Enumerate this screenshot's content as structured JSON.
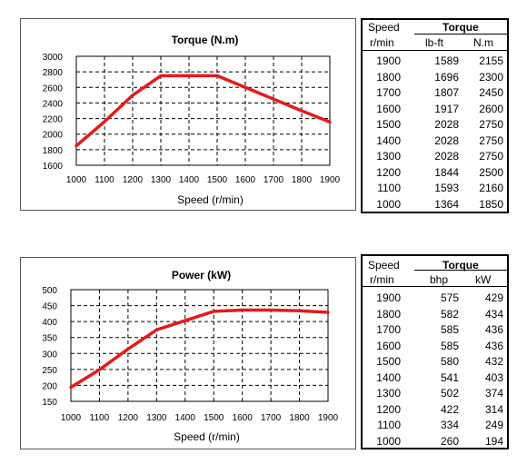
{
  "chart_data": [
    {
      "type": "line",
      "title": "Torque (N.m)",
      "xlabel": "Speed (r/min)",
      "ylabel": "",
      "x": [
        1000,
        1100,
        1200,
        1300,
        1400,
        1500,
        1600,
        1700,
        1800,
        1900
      ],
      "x_ticks": [
        "1000",
        "1100",
        "1200",
        "1300",
        "1400",
        "1500",
        "1600",
        "1700",
        "1800",
        "1900"
      ],
      "y_ticks": [
        "3000",
        "2800",
        "2600",
        "2400",
        "2200",
        "2000",
        "1800",
        "1600"
      ],
      "xlim": [
        1000,
        1900
      ],
      "ylim": [
        1600,
        3000
      ],
      "grid": "dashed",
      "series": [
        {
          "values": [
            1850,
            2160,
            2500,
            2750,
            2750,
            2750,
            2600,
            2450,
            2300,
            2155
          ],
          "color": "#e31b1b"
        }
      ]
    },
    {
      "type": "line",
      "title": "Power (kW)",
      "xlabel": "Speed (r/min)",
      "ylabel": "",
      "x": [
        1000,
        1100,
        1200,
        1300,
        1400,
        1500,
        1600,
        1700,
        1800,
        1900
      ],
      "x_ticks": [
        "1000",
        "1100",
        "1200",
        "1300",
        "1400",
        "1500",
        "1600",
        "1700",
        "1800",
        "1900"
      ],
      "y_ticks": [
        "500",
        "450",
        "400",
        "350",
        "300",
        "250",
        "200",
        "150"
      ],
      "xlim": [
        1000,
        1900
      ],
      "ylim": [
        150,
        500
      ],
      "grid": "dashed",
      "series": [
        {
          "values": [
            194,
            249,
            314,
            374,
            403,
            432,
            436,
            436,
            434,
            429
          ],
          "color": "#e31b1b"
        }
      ]
    }
  ],
  "tables": [
    {
      "header_top": [
        "Speed",
        "Torque"
      ],
      "header_bottom": [
        "r/min",
        "lb-ft",
        "N.m"
      ],
      "rows": [
        [
          "1900",
          "1589",
          "2155"
        ],
        [
          "1800",
          "1696",
          "2300"
        ],
        [
          "1700",
          "1807",
          "2450"
        ],
        [
          "1600",
          "1917",
          "2600"
        ],
        [
          "1500",
          "2028",
          "2750"
        ],
        [
          "1400",
          "2028",
          "2750"
        ],
        [
          "1300",
          "2028",
          "2750"
        ],
        [
          "1200",
          "1844",
          "2500"
        ],
        [
          "1100",
          "1593",
          "2160"
        ],
        [
          "1000",
          "1364",
          "1850"
        ]
      ]
    },
    {
      "header_top": [
        "Speed",
        "Torque"
      ],
      "header_bottom": [
        "r/min",
        "bhp",
        "kW"
      ],
      "rows": [
        [
          "1900",
          "575",
          "429"
        ],
        [
          "1800",
          "582",
          "434"
        ],
        [
          "1700",
          "585",
          "436"
        ],
        [
          "1600",
          "585",
          "436"
        ],
        [
          "1500",
          "580",
          "432"
        ],
        [
          "1400",
          "541",
          "403"
        ],
        [
          "1300",
          "502",
          "374"
        ],
        [
          "1200",
          "422",
          "314"
        ],
        [
          "1100",
          "334",
          "249"
        ],
        [
          "1000",
          "260",
          "194"
        ]
      ]
    }
  ]
}
